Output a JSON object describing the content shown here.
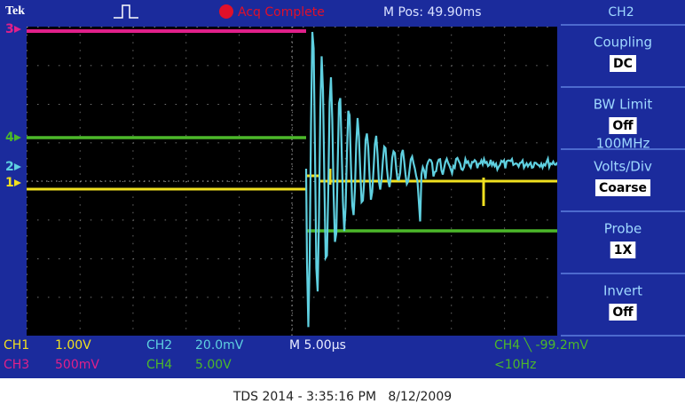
{
  "top_bar": {
    "brand": "Tek",
    "status": "Acq Complete",
    "position": "M Pos: 49.90ms",
    "menu_title": "CH2"
  },
  "menu": [
    {
      "label": "Coupling",
      "value": "DC"
    },
    {
      "label": "BW Limit",
      "value": "Off",
      "note": "100MHz"
    },
    {
      "label": "Volts/Div",
      "value": "Coarse"
    },
    {
      "label": "Probe",
      "value": "1X"
    },
    {
      "label": "Invert",
      "value": "Off"
    }
  ],
  "channel_markers": [
    "3",
    "4",
    "2",
    "1"
  ],
  "status_bar": {
    "ch1": "CH1",
    "ch1_scale": "1.00V",
    "ch2": "CH2",
    "ch2_scale": "20.0mV",
    "timebase": "M 5.00µs",
    "trigger": "CH4 ╲ -99.2mV",
    "ch3": "CH3",
    "ch3_scale": "500mV",
    "ch4": "CH4",
    "ch4_scale": "5.00V",
    "trigger_freq": "<10Hz"
  },
  "footer": "TDS 2014 - 3:35:16 PM   8/12/2009"
}
